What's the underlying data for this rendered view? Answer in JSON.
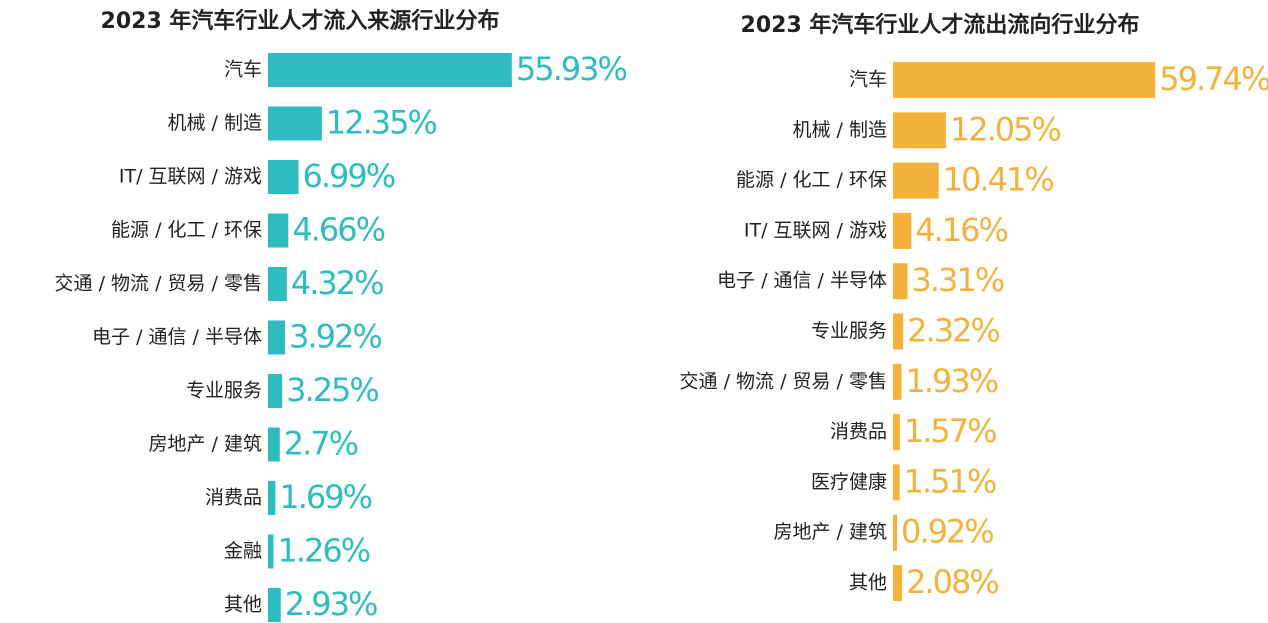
{
  "chart_data": [
    {
      "type": "bar",
      "orientation": "horizontal",
      "title": "2023 年汽车行业人才流入来源行业分布",
      "color": "#2dbdc0",
      "categories": [
        "汽车",
        "机械 / 制造",
        "IT/ 互联网 / 游戏",
        "能源 / 化工 / 环保",
        "交通 / 物流 / 贸易 / 零售",
        "电子 / 通信 / 半导体",
        "专业服务",
        "房地产 / 建筑",
        "消费品",
        "金融",
        "其他"
      ],
      "values": [
        55.93,
        12.35,
        6.99,
        4.66,
        4.32,
        3.92,
        3.25,
        2.7,
        1.69,
        1.26,
        2.93
      ],
      "value_labels": [
        "55.93%",
        "12.35%",
        "6.99%",
        "4.66%",
        "4.32%",
        "3.92%",
        "3.25%",
        "2.7%",
        "1.69%",
        "1.26%",
        "2.93%"
      ]
    },
    {
      "type": "bar",
      "orientation": "horizontal",
      "title": "2023 年汽车行业人才流出流向行业分布",
      "color": "#f4b23a",
      "categories": [
        "汽车",
        "机械 / 制造",
        "能源 / 化工 / 环保",
        "IT/ 互联网 / 游戏",
        "电子 / 通信 / 半导体",
        "专业服务",
        "交通 / 物流 / 贸易 / 零售",
        "消费品",
        "医疗健康",
        "房地产 / 建筑",
        "其他"
      ],
      "values": [
        59.74,
        12.05,
        10.41,
        4.16,
        3.31,
        2.32,
        1.93,
        1.57,
        1.51,
        0.92,
        2.08
      ],
      "value_labels": [
        "59.74%",
        "12.05%",
        "10.41%",
        "4.16%",
        "3.31%",
        "2.32%",
        "1.93%",
        "1.57%",
        "1.51%",
        "0.92%",
        "2.08%"
      ]
    }
  ]
}
